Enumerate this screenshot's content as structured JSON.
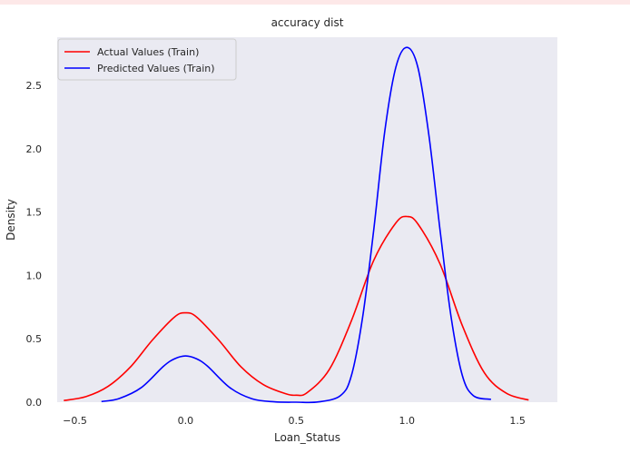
{
  "chart_data": {
    "type": "line",
    "title": "accuracy dist",
    "xlabel": "Loan_Status",
    "ylabel": "Density",
    "xlim": [
      -0.58,
      1.68
    ],
    "ylim": [
      0,
      2.88
    ],
    "x_ticks": [
      -0.5,
      0.0,
      0.5,
      1.0,
      1.5
    ],
    "x_tick_labels": [
      "−0.5",
      "0.0",
      "0.5",
      "1.0",
      "1.5"
    ],
    "y_ticks": [
      0.0,
      0.5,
      1.0,
      1.5,
      2.0,
      2.5
    ],
    "y_tick_labels": [
      "0.0",
      "0.5",
      "1.0",
      "1.5",
      "2.0",
      "2.5"
    ],
    "grid": false,
    "background": "#eaeaf2",
    "legend_position": "upper-left",
    "series": [
      {
        "name": "Actual Values (Train)",
        "color": "#ff0000",
        "x": [
          -0.55,
          -0.45,
          -0.35,
          -0.25,
          -0.15,
          -0.05,
          0.0,
          0.05,
          0.15,
          0.25,
          0.35,
          0.45,
          0.5,
          0.55,
          0.65,
          0.75,
          0.85,
          0.95,
          1.0,
          1.05,
          1.15,
          1.25,
          1.35,
          1.45,
          1.55
        ],
        "y": [
          0.013,
          0.044,
          0.125,
          0.276,
          0.49,
          0.672,
          0.705,
          0.672,
          0.49,
          0.28,
          0.14,
          0.068,
          0.055,
          0.076,
          0.259,
          0.645,
          1.118,
          1.414,
          1.465,
          1.406,
          1.09,
          0.607,
          0.232,
          0.07,
          0.017
        ]
      },
      {
        "name": "Predicted Values (Train)",
        "color": "#0000ff",
        "x": [
          -0.38,
          -0.3,
          -0.2,
          -0.1,
          -0.05,
          0.0,
          0.05,
          0.1,
          0.2,
          0.3,
          0.4,
          0.5,
          0.6,
          0.7,
          0.75,
          0.8,
          0.85,
          0.9,
          0.95,
          1.0,
          1.05,
          1.1,
          1.15,
          1.2,
          1.25,
          1.3,
          1.38
        ],
        "y": [
          0.005,
          0.029,
          0.115,
          0.283,
          0.342,
          0.365,
          0.342,
          0.283,
          0.115,
          0.027,
          0.003,
          0.0,
          0.002,
          0.052,
          0.214,
          0.67,
          1.356,
          2.136,
          2.642,
          2.8,
          2.64,
          2.1,
          1.356,
          0.67,
          0.214,
          0.052,
          0.022
        ]
      }
    ]
  }
}
